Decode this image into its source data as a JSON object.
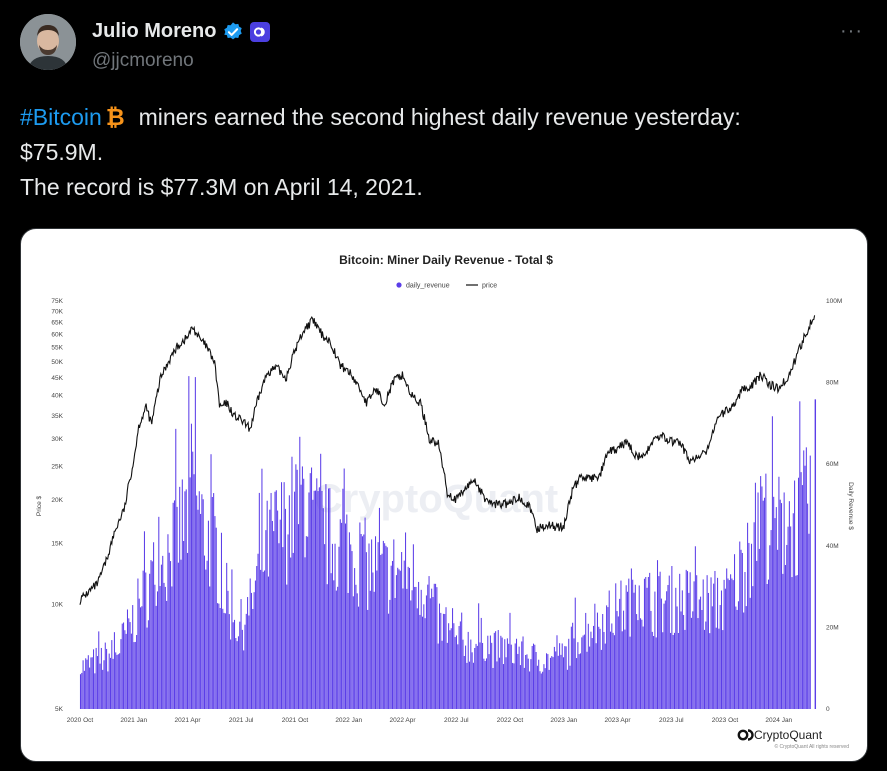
{
  "tweet": {
    "author_name": "Julio Moreno",
    "handle": "@jjcmoreno",
    "more_label": "···",
    "hashtag": "#Bitcoin",
    "line1_rest": "miners earned the second highest daily revenue yesterday:",
    "line2": "$75.9M.",
    "line3": "The record is $77.3M on April 14, 2021."
  },
  "colors": {
    "revenue": "#5b3ee8",
    "price": "#111111",
    "hashtag": "#1d9bf0",
    "bitcoin": "#f7931a",
    "verified": "#1d9bf0",
    "affiliate_badge": "#4b3fe0"
  },
  "chart_data": {
    "type": "bar",
    "title": "Bitcoin: Miner Daily Revenue - Total $",
    "legend": {
      "revenue_label": "daily_revenue",
      "price_label": "price",
      "placement": "top-center"
    },
    "left_axis_label": "Price $",
    "right_axis_label": "Daily Revenue $",
    "left_axis_scale": "log",
    "left_ticks": [
      "75K",
      "70K",
      "65K",
      "60K",
      "55K",
      "50K",
      "45K",
      "40K",
      "35K",
      "30K",
      "25K",
      "20K",
      "15K",
      "10K",
      "5K"
    ],
    "left_tick_values": [
      75000,
      70000,
      65000,
      60000,
      55000,
      50000,
      45000,
      40000,
      35000,
      30000,
      25000,
      20000,
      15000,
      10000,
      5000
    ],
    "right_ticks": [
      "100M",
      "80M",
      "60M",
      "40M",
      "20M",
      "0"
    ],
    "right_tick_values": [
      100,
      80,
      60,
      40,
      20,
      0
    ],
    "x_ticks": [
      "2020 Oct",
      "2021 Jan",
      "2021 Apr",
      "2021 Jul",
      "2021 Oct",
      "2022 Jan",
      "2022 Apr",
      "2022 Jul",
      "2022 Oct",
      "2023 Jan",
      "2023 Apr",
      "2023 Jul",
      "2023 Oct",
      "2024 Jan"
    ],
    "x_tick_months": [
      0,
      3,
      6,
      9,
      12,
      15,
      18,
      21,
      24,
      27,
      30,
      33,
      36,
      39
    ],
    "x_range_months": [
      -0.5,
      41.3
    ],
    "revenue_musd_keypoints": [
      [
        0,
        11
      ],
      [
        1,
        13
      ],
      [
        2,
        15
      ],
      [
        3,
        24
      ],
      [
        4,
        35
      ],
      [
        5,
        42
      ],
      [
        6,
        52
      ],
      [
        6.3,
        64
      ],
      [
        6.7,
        50
      ],
      [
        7,
        46
      ],
      [
        7.5,
        44
      ],
      [
        8,
        32
      ],
      [
        8.5,
        24
      ],
      [
        9,
        22
      ],
      [
        9.5,
        27
      ],
      [
        10,
        38
      ],
      [
        10.7,
        46
      ],
      [
        11.5,
        49
      ],
      [
        12,
        54
      ],
      [
        12.5,
        58
      ],
      [
        13,
        49
      ],
      [
        14,
        45
      ],
      [
        15,
        43
      ],
      [
        16,
        38
      ],
      [
        17,
        36
      ],
      [
        18,
        37
      ],
      [
        19,
        34
      ],
      [
        19.5,
        30
      ],
      [
        20,
        23
      ],
      [
        20.5,
        20
      ],
      [
        21,
        18
      ],
      [
        22,
        17
      ],
      [
        22.5,
        19
      ],
      [
        23,
        16
      ],
      [
        24,
        16
      ],
      [
        25,
        14
      ],
      [
        26,
        13
      ],
      [
        27,
        14
      ],
      [
        27.5,
        18
      ],
      [
        28,
        21
      ],
      [
        29,
        23
      ],
      [
        30,
        26
      ],
      [
        30.8,
        29
      ],
      [
        31,
        38
      ],
      [
        31.3,
        30
      ],
      [
        32,
        28
      ],
      [
        33,
        29
      ],
      [
        34,
        29
      ],
      [
        35,
        28
      ],
      [
        36,
        29
      ],
      [
        36.5,
        33
      ],
      [
        37,
        38
      ],
      [
        37.5,
        44
      ],
      [
        38,
        52
      ],
      [
        38.5,
        48
      ],
      [
        39,
        48
      ],
      [
        39.5,
        50
      ],
      [
        40,
        50
      ],
      [
        40.5,
        53
      ],
      [
        40.8,
        60
      ]
    ],
    "revenue_last_day_musd": 75.9,
    "price_keypoints": [
      [
        0,
        10300
      ],
      [
        0.5,
        10900
      ],
      [
        1,
        11500
      ],
      [
        1.5,
        13500
      ],
      [
        2,
        16500
      ],
      [
        2.5,
        19000
      ],
      [
        3,
        26000
      ],
      [
        3.3,
        33000
      ],
      [
        3.7,
        37000
      ],
      [
        4,
        33000
      ],
      [
        4.5,
        45000
      ],
      [
        5,
        51000
      ],
      [
        5.5,
        56000
      ],
      [
        6,
        59000
      ],
      [
        6.3,
        63000
      ],
      [
        6.7,
        58000
      ],
      [
        7,
        56000
      ],
      [
        7.5,
        50000
      ],
      [
        7.8,
        37000
      ],
      [
        8.2,
        38000
      ],
      [
        8.6,
        35000
      ],
      [
        9,
        34000
      ],
      [
        9.5,
        32000
      ],
      [
        10,
        40000
      ],
      [
        10.5,
        47000
      ],
      [
        11,
        48000
      ],
      [
        11.5,
        45000
      ],
      [
        12,
        54000
      ],
      [
        12.5,
        62000
      ],
      [
        13,
        66000
      ],
      [
        13.5,
        60000
      ],
      [
        14,
        57000
      ],
      [
        14.5,
        49000
      ],
      [
        15,
        47000
      ],
      [
        15.5,
        43000
      ],
      [
        16,
        38000
      ],
      [
        16.5,
        42000
      ],
      [
        17,
        38000
      ],
      [
        17.5,
        44000
      ],
      [
        18,
        46000
      ],
      [
        18.5,
        40000
      ],
      [
        19,
        38000
      ],
      [
        19.5,
        30000
      ],
      [
        20,
        29000
      ],
      [
        20.5,
        21000
      ],
      [
        21,
        20000
      ],
      [
        21.5,
        21500
      ],
      [
        22,
        23000
      ],
      [
        22.5,
        20500
      ],
      [
        23,
        19500
      ],
      [
        23.5,
        19500
      ],
      [
        24,
        19500
      ],
      [
        24.5,
        20500
      ],
      [
        25,
        19500
      ],
      [
        25.5,
        16500
      ],
      [
        26,
        17000
      ],
      [
        26.5,
        16800
      ],
      [
        27,
        16700
      ],
      [
        27.5,
        21500
      ],
      [
        28,
        23500
      ],
      [
        28.5,
        23000
      ],
      [
        29,
        23500
      ],
      [
        29.5,
        27500
      ],
      [
        30,
        28000
      ],
      [
        30.5,
        29500
      ],
      [
        31,
        27000
      ],
      [
        31.5,
        26500
      ],
      [
        32,
        30000
      ],
      [
        32.5,
        30500
      ],
      [
        33,
        29500
      ],
      [
        33.5,
        29300
      ],
      [
        34,
        26000
      ],
      [
        34.5,
        26500
      ],
      [
        35,
        27500
      ],
      [
        35.5,
        34000
      ],
      [
        36,
        36000
      ],
      [
        36.5,
        37500
      ],
      [
        37,
        42000
      ],
      [
        37.5,
        43000
      ],
      [
        38,
        46000
      ],
      [
        38.5,
        43000
      ],
      [
        39,
        42000
      ],
      [
        39.5,
        45000
      ],
      [
        40,
        52000
      ],
      [
        40.3,
        57000
      ],
      [
        40.6,
        62000
      ],
      [
        41,
        69000
      ]
    ],
    "brand": "CryptoQuant",
    "watermark": "CryptoQuant",
    "copyright": "© CryptoQuant All rights reserved"
  }
}
